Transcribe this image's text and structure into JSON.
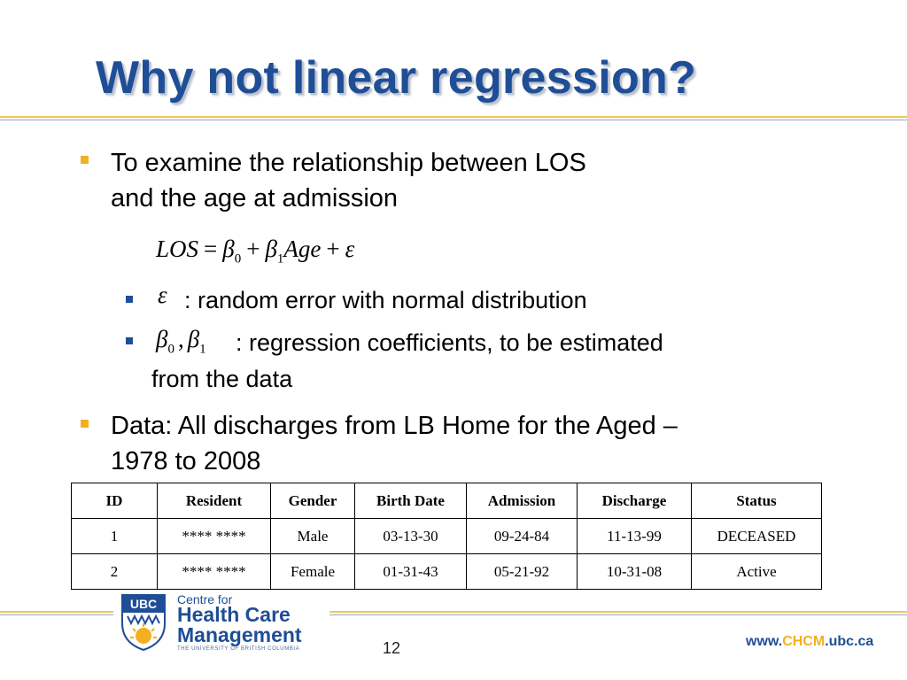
{
  "title": "Why not linear regression?",
  "bullets": {
    "b1_line1": "To examine the relationship between LOS",
    "b1_line2": "and the age at admission",
    "equation": {
      "lhs": "LOS",
      "eq": "=",
      "beta": "β",
      "sub0": "0",
      "plus": "+",
      "sub1": "1",
      "age": "Age",
      "epsilon": "ε"
    },
    "sub1_symbol": "ε",
    "sub1_text": ": random error with normal distribution",
    "sub2_symbol_beta": "β",
    "sub2_sub0": "0",
    "sub2_comma": ",",
    "sub2_sub1": "1",
    "sub2_text": ": regression coefficients, to be estimated",
    "sub2_line2": "from the data",
    "b2_line1": "Data: All discharges from LB Home for the Aged –",
    "b2_line2": "1978 to 2008"
  },
  "table": {
    "headers": [
      "ID",
      "Resident",
      "Gender",
      "Birth Date",
      "Admission",
      "Discharge",
      "Status"
    ],
    "rows": [
      [
        "1",
        "**** ****",
        "Male",
        "03-13-30",
        "09-24-84",
        "11-13-99",
        "DECEASED"
      ],
      [
        "2",
        "**** ****",
        "Female",
        "01-31-43",
        "05-21-92",
        "10-31-08",
        "Active"
      ]
    ]
  },
  "footer": {
    "logo_ubc": "UBC",
    "logo_small": "Centre for",
    "logo_line1": "Health Care",
    "logo_line2": "Management",
    "logo_sub": "THE UNIVERSITY OF BRITISH COLUMBIA",
    "page_number": "12",
    "web_prefix": "www.",
    "web_highlight": "CHCM",
    "web_suffix": ".ubc.ca"
  },
  "colors": {
    "title": "#1f4e96",
    "bullet_level1": "#f2b01e",
    "bullet_level2": "#1f4e96",
    "rule": "#f0c85a"
  }
}
